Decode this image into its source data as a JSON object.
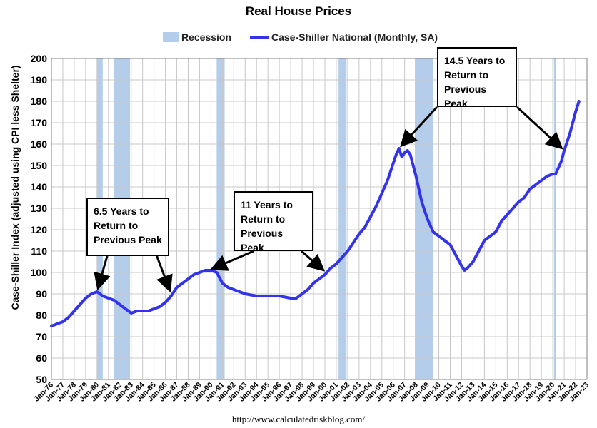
{
  "chart_data": {
    "type": "line",
    "title": "Real House Prices",
    "ylabel": "Case-Shiller Index (adjusted using CPI less Shelter)",
    "xlabel": "",
    "ylim": [
      50,
      200
    ],
    "yticks": [
      50,
      60,
      70,
      80,
      90,
      100,
      110,
      120,
      130,
      140,
      150,
      160,
      170,
      180,
      190,
      200
    ],
    "xlim": [
      "Jan-76",
      "Jan-23"
    ],
    "xticks": [
      "Jan-76",
      "Jan-77",
      "Jan-78",
      "Jan-79",
      "Jan-80",
      "Jan-81",
      "Jan-82",
      "Jan-83",
      "Jan-84",
      "Jan-85",
      "Jan-86",
      "Jan-87",
      "Jan-88",
      "Jan-89",
      "Jan-90",
      "Jan-91",
      "Jan-92",
      "Jan-93",
      "Jan-94",
      "Jan-95",
      "Jan-96",
      "Jan-97",
      "Jan-98",
      "Jan-99",
      "Jan-00",
      "Jan-01",
      "Jan-02",
      "Jan-03",
      "Jan-04",
      "Jan-05",
      "Jan-06",
      "Jan-07",
      "Jan-08",
      "Jan-09",
      "Jan-10",
      "Jan-11",
      "Jan-12",
      "Jan-13",
      "Jan-14",
      "Jan-15",
      "Jan-16",
      "Jan-17",
      "Jan-18",
      "Jan-19",
      "Jan-20",
      "Jan-21",
      "Jan-22",
      "Jan-23"
    ],
    "grid": true,
    "legend_position": "top",
    "legend": [
      "Recession",
      "Case-Shiller National (Monthly, SA)"
    ],
    "colors": {
      "series": "#3333ee",
      "recession": "#b4cdea",
      "grid": "#c8c8c8"
    },
    "recessions": [
      {
        "start": 1980.0,
        "end": 1980.5
      },
      {
        "start": 1981.5,
        "end": 1982.9
      },
      {
        "start": 1990.5,
        "end": 1991.2
      },
      {
        "start": 2001.2,
        "end": 2001.9
      },
      {
        "start": 2007.9,
        "end": 2009.5
      },
      {
        "start": 2020.1,
        "end": 2020.3
      }
    ],
    "series": [
      {
        "name": "Case-Shiller National (Monthly, SA)",
        "points": [
          [
            1976.0,
            75
          ],
          [
            1976.5,
            76
          ],
          [
            1977.0,
            77
          ],
          [
            1977.5,
            79
          ],
          [
            1978.0,
            82
          ],
          [
            1978.5,
            85
          ],
          [
            1979.0,
            88
          ],
          [
            1979.5,
            90
          ],
          [
            1980.0,
            91
          ],
          [
            1980.5,
            89
          ],
          [
            1981.0,
            88
          ],
          [
            1981.5,
            87
          ],
          [
            1982.0,
            85
          ],
          [
            1982.5,
            83
          ],
          [
            1983.0,
            81
          ],
          [
            1983.5,
            82
          ],
          [
            1984.0,
            82
          ],
          [
            1984.5,
            82
          ],
          [
            1985.0,
            83
          ],
          [
            1985.5,
            84
          ],
          [
            1986.0,
            86
          ],
          [
            1986.5,
            89
          ],
          [
            1987.0,
            93
          ],
          [
            1987.5,
            95
          ],
          [
            1988.0,
            97
          ],
          [
            1988.5,
            99
          ],
          [
            1989.0,
            100
          ],
          [
            1989.5,
            101
          ],
          [
            1990.0,
            101
          ],
          [
            1990.5,
            100
          ],
          [
            1991.0,
            95
          ],
          [
            1991.5,
            93
          ],
          [
            1992.0,
            92
          ],
          [
            1992.5,
            91
          ],
          [
            1993.0,
            90
          ],
          [
            1994.0,
            89
          ],
          [
            1995.0,
            89
          ],
          [
            1996.0,
            89
          ],
          [
            1997.0,
            88
          ],
          [
            1997.5,
            88
          ],
          [
            1998.0,
            90
          ],
          [
            1998.5,
            92
          ],
          [
            1999.0,
            95
          ],
          [
            1999.5,
            97
          ],
          [
            2000.0,
            99
          ],
          [
            2000.5,
            102
          ],
          [
            2001.0,
            104
          ],
          [
            2001.5,
            107
          ],
          [
            2002.0,
            110
          ],
          [
            2002.5,
            114
          ],
          [
            2003.0,
            118
          ],
          [
            2003.5,
            121
          ],
          [
            2004.0,
            126
          ],
          [
            2004.5,
            131
          ],
          [
            2005.0,
            137
          ],
          [
            2005.5,
            143
          ],
          [
            2006.0,
            151
          ],
          [
            2006.25,
            155
          ],
          [
            2006.5,
            158
          ],
          [
            2006.75,
            154
          ],
          [
            2007.0,
            156
          ],
          [
            2007.25,
            157
          ],
          [
            2007.5,
            155
          ],
          [
            2008.0,
            145
          ],
          [
            2008.5,
            133
          ],
          [
            2009.0,
            125
          ],
          [
            2009.5,
            119
          ],
          [
            2010.0,
            117
          ],
          [
            2010.5,
            115
          ],
          [
            2011.0,
            113
          ],
          [
            2011.5,
            108
          ],
          [
            2012.0,
            103
          ],
          [
            2012.25,
            101
          ],
          [
            2012.5,
            102
          ],
          [
            2013.0,
            105
          ],
          [
            2013.5,
            110
          ],
          [
            2014.0,
            115
          ],
          [
            2014.5,
            117
          ],
          [
            2015.0,
            119
          ],
          [
            2015.5,
            124
          ],
          [
            2016.0,
            127
          ],
          [
            2016.5,
            130
          ],
          [
            2017.0,
            133
          ],
          [
            2017.5,
            135
          ],
          [
            2018.0,
            139
          ],
          [
            2018.5,
            141
          ],
          [
            2019.0,
            143
          ],
          [
            2019.5,
            145
          ],
          [
            2020.0,
            146
          ],
          [
            2020.25,
            146
          ],
          [
            2020.5,
            149
          ],
          [
            2020.75,
            152
          ],
          [
            2021.0,
            157
          ],
          [
            2021.5,
            165
          ],
          [
            2022.0,
            175
          ],
          [
            2022.3,
            180
          ]
        ]
      }
    ],
    "annotations": [
      {
        "lines": [
          "6.5 Years to",
          "Return to",
          "Previous Peak"
        ],
        "targets": [
          [
            1980.0,
            91
          ],
          [
            1986.5,
            90
          ]
        ]
      },
      {
        "lines": [
          "11 Years to",
          "Return to",
          "Previous Peak"
        ],
        "targets": [
          [
            1989.8,
            101
          ],
          [
            2000.1,
            100
          ]
        ]
      },
      {
        "lines": [
          "14.5 Years to",
          "Return to",
          "Previous Peak"
        ],
        "targets": [
          [
            2006.5,
            158
          ],
          [
            2021.0,
            157
          ]
        ]
      }
    ],
    "source": "http://www.calculatedriskblog.com/"
  }
}
